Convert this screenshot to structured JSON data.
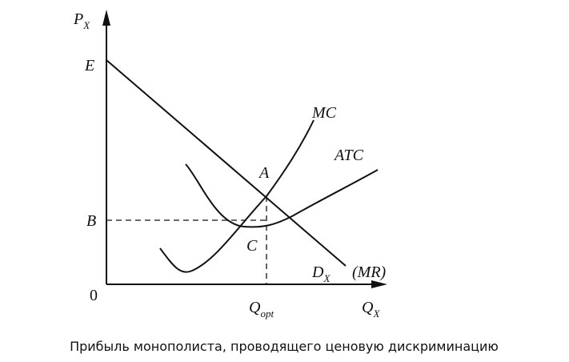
{
  "axes": {
    "y_label": {
      "main": "P",
      "sub": "X"
    },
    "x_label": {
      "main": "Q",
      "sub": "X"
    },
    "origin": "0"
  },
  "points": {
    "E": "E",
    "B": "B",
    "A": "A",
    "C": "C",
    "q_opt": {
      "main": "Q",
      "sub": "opt"
    }
  },
  "curves": {
    "mc": "MC",
    "atc": "ATC",
    "demand": {
      "main": "D",
      "sub": "X"
    },
    "mr": "(MR)"
  },
  "caption": "Прибыль монополиста, проводящего ценовую дискриминацию"
}
